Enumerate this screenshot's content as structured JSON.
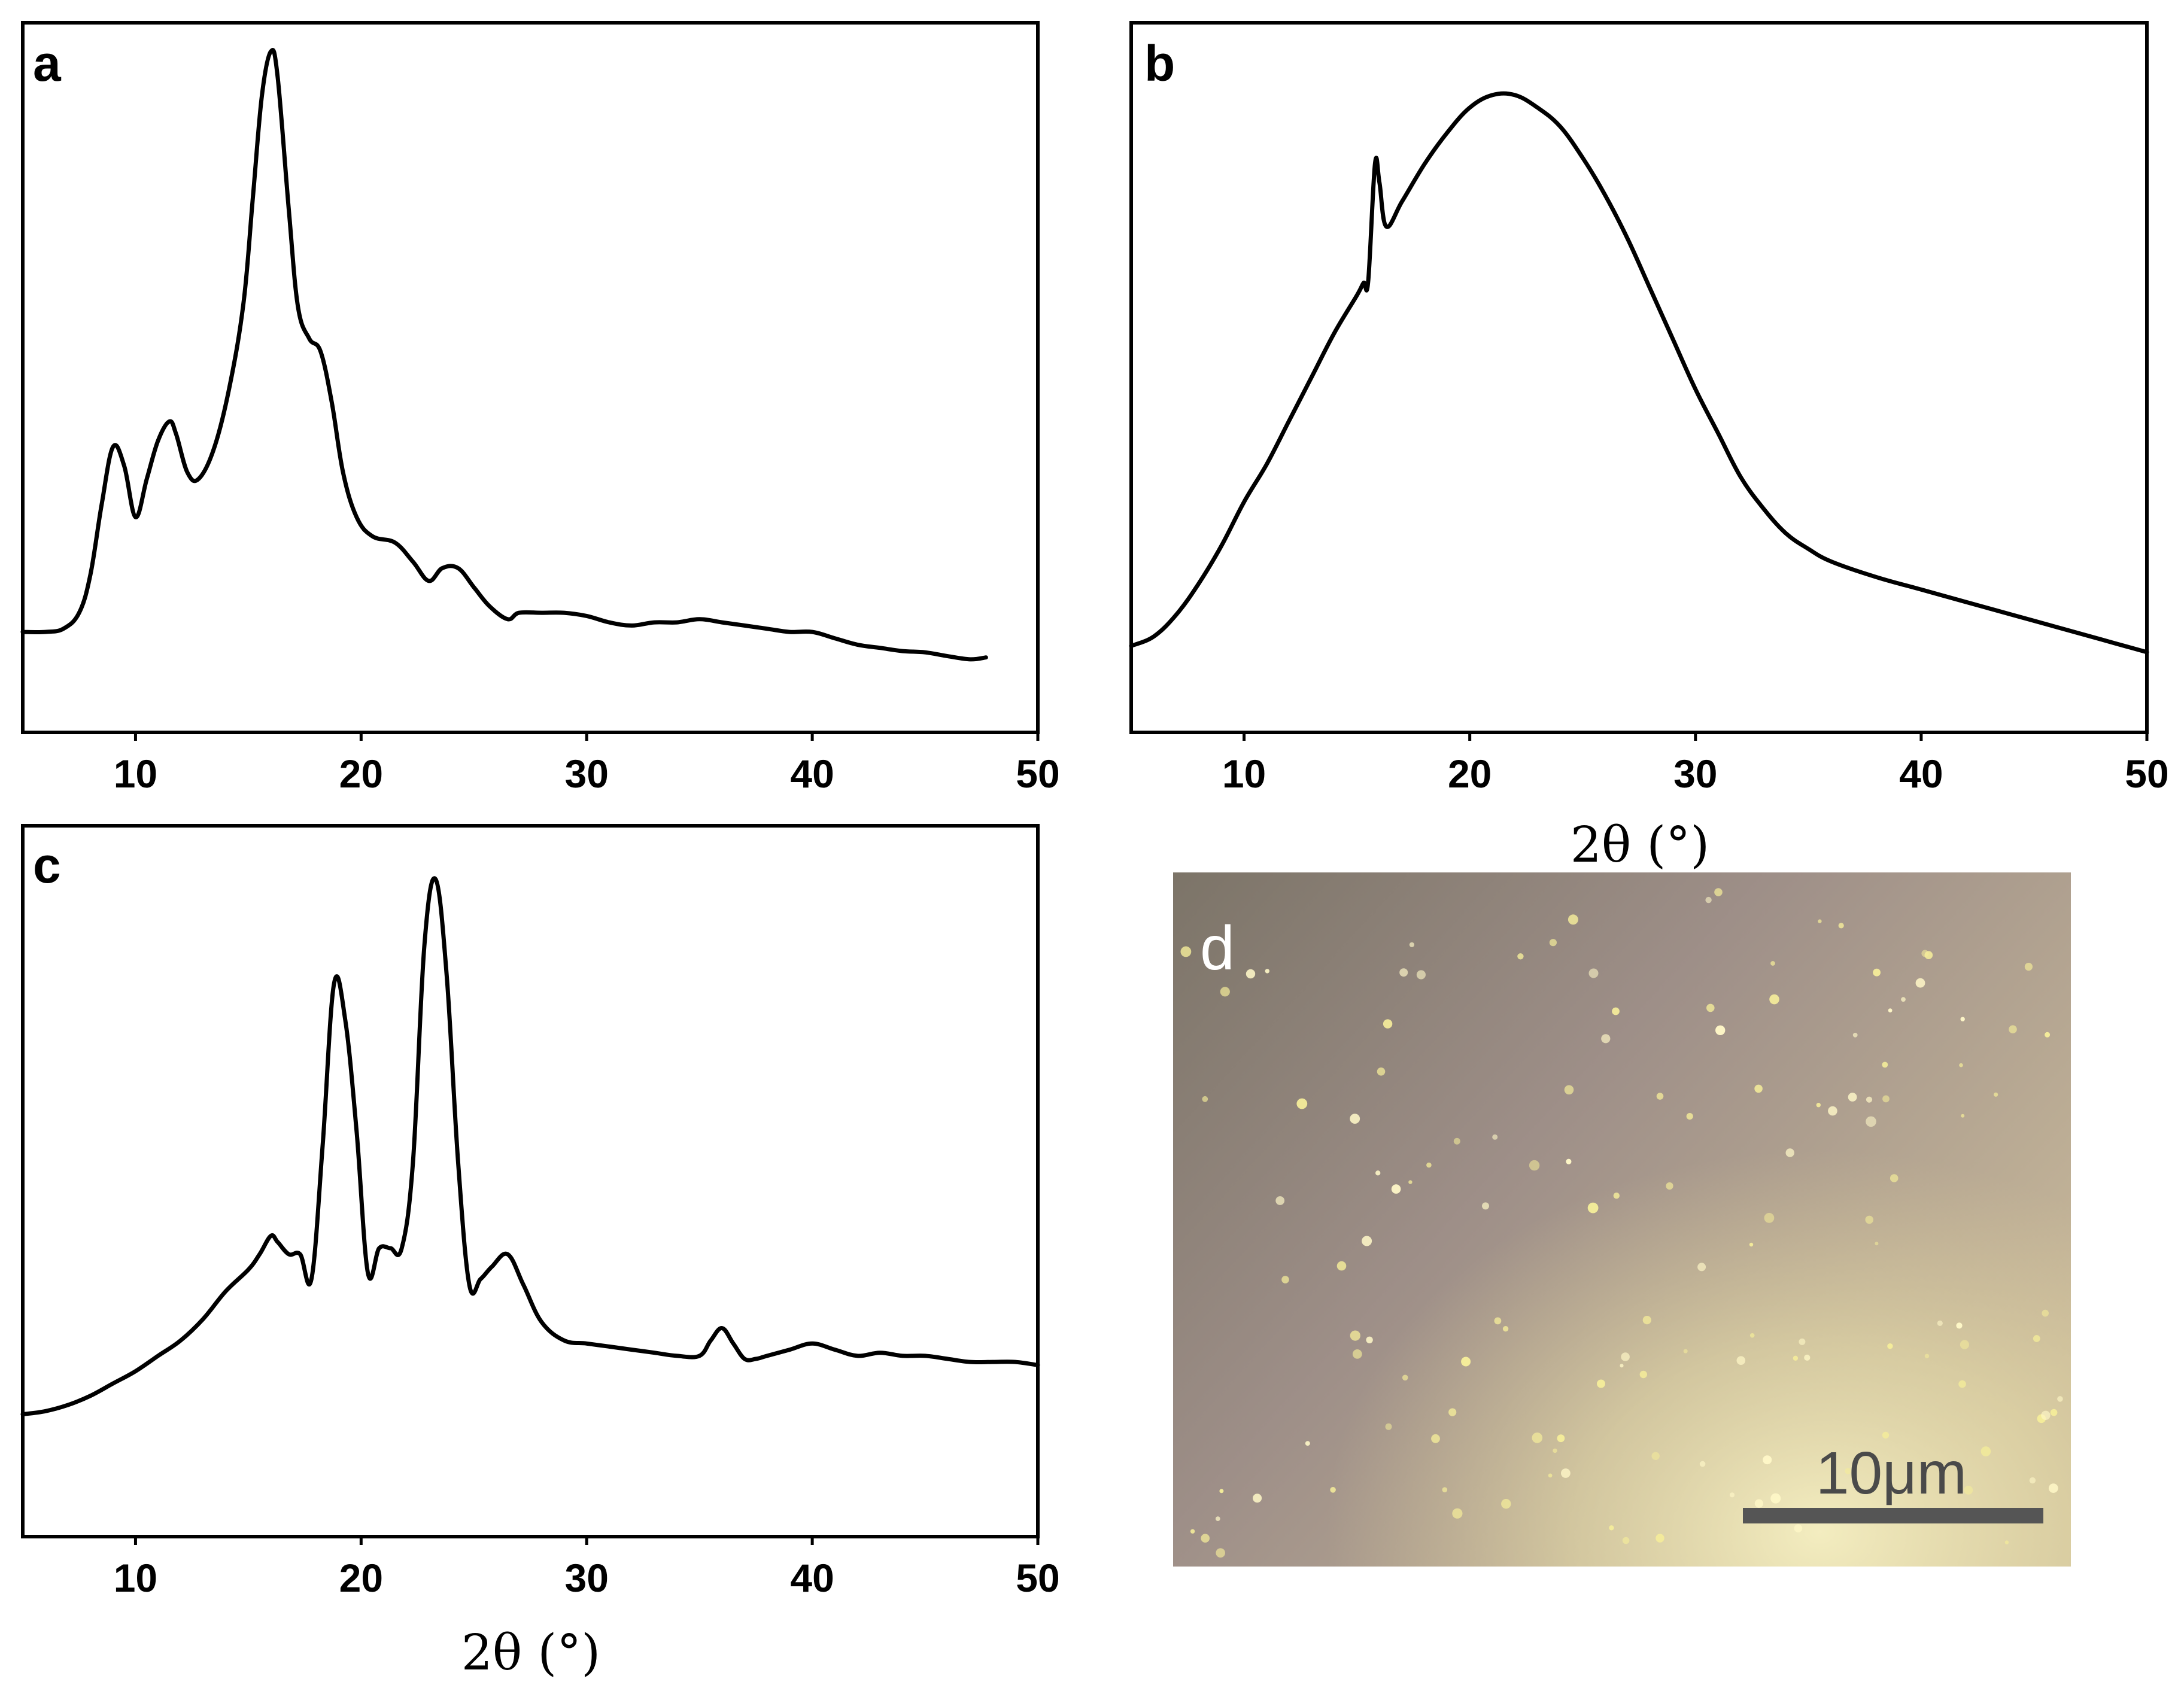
{
  "colors": {
    "line": "#000000",
    "frame": "#000000",
    "scale_bar": "#555555",
    "micro_label": "#ffffff"
  },
  "chart_data": [
    {
      "panel": "a",
      "type": "line",
      "xlabel": "",
      "ylabel": "",
      "xlim": [
        5,
        50
      ],
      "ylim": [
        0,
        100
      ],
      "xticks": [
        10,
        20,
        30,
        40,
        50
      ],
      "series": [
        {
          "name": "a",
          "x": [
            5,
            6,
            6.8,
            7.5,
            8,
            8.5,
            9,
            9.5,
            10,
            10.5,
            11,
            11.5,
            11.8,
            12.3,
            12.8,
            13.5,
            14.2,
            14.8,
            15.2,
            15.6,
            16,
            16.3,
            16.8,
            17.2,
            17.7,
            18.2,
            18.7,
            19.2,
            19.8,
            20.5,
            21.5,
            22.3,
            23,
            23.6,
            24.3,
            25,
            25.7,
            26.5,
            27,
            28,
            29,
            30,
            31,
            32,
            33,
            34,
            35,
            36,
            37,
            38,
            39,
            40,
            41,
            42,
            43,
            44,
            45,
            46,
            47,
            47.7
          ],
          "y": [
            12,
            12,
            12.5,
            15,
            21,
            32,
            41,
            38,
            30,
            36,
            42,
            45,
            43,
            37,
            36,
            41,
            51,
            64,
            80,
            96,
            103,
            99,
            78,
            63,
            58,
            56,
            48,
            37,
            30,
            27,
            26,
            23,
            20,
            22,
            22,
            19,
            16,
            14,
            15,
            15,
            15,
            14.5,
            13.5,
            13,
            13.5,
            13.5,
            14,
            13.5,
            13,
            12.5,
            12,
            12,
            11,
            10,
            9.5,
            9,
            8.8,
            8.2,
            7.7,
            8
          ]
        }
      ]
    },
    {
      "panel": "b",
      "type": "line",
      "xlabel": "2θ (°)",
      "ylabel": "",
      "xlim": [
        5,
        50
      ],
      "ylim": [
        0,
        100
      ],
      "xticks": [
        10,
        20,
        30,
        40,
        50
      ],
      "series": [
        {
          "name": "b",
          "x": [
            5,
            6,
            7,
            8,
            9,
            10,
            11,
            12,
            13,
            14,
            15,
            15.3,
            15.5,
            15.8,
            16,
            16.3,
            17,
            18,
            19,
            20,
            21,
            22,
            23,
            24,
            25,
            26,
            27,
            28,
            29,
            30,
            31,
            32,
            33,
            34,
            35,
            36,
            38,
            40,
            42,
            44,
            46,
            48,
            50
          ],
          "y": [
            10,
            11.5,
            15,
            20,
            26,
            33,
            39,
            46,
            53,
            60,
            66,
            68,
            68.3,
            87,
            84,
            77,
            81,
            87,
            92,
            96,
            98,
            98,
            96,
            93,
            88,
            82,
            75,
            67,
            59,
            51,
            44,
            37,
            32,
            28,
            25.5,
            23.5,
            21,
            19,
            17,
            15,
            13,
            11,
            9
          ]
        }
      ]
    },
    {
      "panel": "c",
      "type": "line",
      "xlabel": "2θ (°)",
      "ylabel": "",
      "xlim": [
        5,
        50
      ],
      "ylim": [
        0,
        100
      ],
      "xticks": [
        10,
        20,
        30,
        40,
        50
      ],
      "series": [
        {
          "name": "c",
          "x": [
            5,
            6,
            7,
            8,
            9,
            10,
            11,
            12,
            13,
            14,
            15,
            15.5,
            16,
            16.3,
            16.8,
            17.3,
            17.8,
            18.3,
            18.8,
            19.3,
            19.8,
            20.3,
            20.8,
            21.3,
            21.8,
            22.3,
            22.8,
            23.3,
            23.8,
            24.3,
            24.8,
            25.3,
            25.8,
            26.5,
            27.2,
            28,
            29,
            30,
            31,
            32,
            33,
            34,
            35,
            35.5,
            36,
            36.5,
            37,
            37.5,
            38,
            39,
            40,
            41,
            42,
            43,
            44,
            45,
            46,
            47,
            48,
            49,
            50
          ],
          "y": [
            16,
            16.5,
            17.5,
            19,
            21,
            23,
            25.5,
            28,
            31.5,
            36,
            39.5,
            42,
            45,
            44,
            42,
            42,
            38,
            60,
            86,
            80,
            62,
            39,
            43,
            43,
            43,
            57,
            92,
            103,
            87,
            57,
            37,
            38,
            40,
            42,
            37,
            31,
            28,
            27.5,
            27,
            26.5,
            26,
            25.5,
            25.5,
            28,
            30,
            27.5,
            25,
            25,
            25.5,
            26.5,
            27.5,
            26.5,
            25.5,
            26,
            25.5,
            25.5,
            25,
            24.5,
            24.5,
            24.5,
            24
          ]
        }
      ]
    }
  ],
  "micrograph": {
    "label": "d",
    "scale_bar_text": "10μm"
  }
}
